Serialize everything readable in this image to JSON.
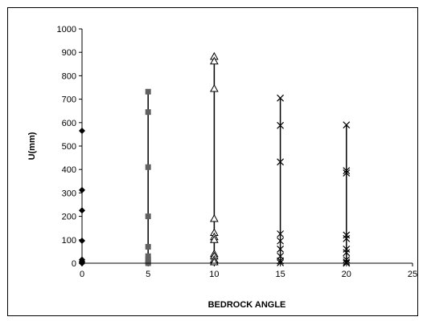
{
  "chart_data": {
    "type": "scatter",
    "title": "",
    "xlabel": "BEDROCK ANGLE",
    "ylabel": "U(mm)",
    "xlim": [
      0,
      25
    ],
    "ylim": [
      0,
      1000
    ],
    "xticks": [
      0,
      5,
      10,
      15,
      20,
      25
    ],
    "yticks": [
      0,
      100,
      200,
      300,
      400,
      500,
      600,
      700,
      800,
      900,
      1000
    ],
    "grid": false,
    "legend": "none",
    "series": [
      {
        "marker": "diamond",
        "color": "#000000",
        "line": false,
        "x": [
          0,
          0,
          0,
          0,
          0,
          0,
          0,
          0
        ],
        "y": [
          565,
          312,
          225,
          96,
          15,
          8,
          3,
          0
        ]
      },
      {
        "marker": "square",
        "color": "#606060",
        "line": true,
        "x": [
          5,
          5,
          5,
          5,
          5,
          5,
          5,
          5,
          5
        ],
        "y": [
          732,
          645,
          410,
          200,
          70,
          30,
          15,
          5,
          0
        ]
      },
      {
        "marker": "triangle",
        "color": "#000000",
        "line": true,
        "x": [
          10,
          10,
          10,
          10,
          10,
          10,
          10,
          10,
          10,
          10,
          10
        ],
        "y": [
          882,
          862,
          745,
          190,
          130,
          112,
          100,
          40,
          30,
          15,
          5
        ]
      },
      {
        "marker": "x",
        "color": "#000000",
        "line": true,
        "x": [
          15,
          15,
          15,
          15,
          15,
          15,
          15,
          15,
          15
        ],
        "y": [
          705,
          588,
          432,
          125,
          95,
          60,
          30,
          10,
          2
        ]
      },
      {
        "marker": "x",
        "color": "#000000",
        "line": true,
        "x": [
          20,
          20,
          20,
          20,
          20,
          20,
          20,
          20,
          20,
          20
        ],
        "y": [
          590,
          395,
          385,
          120,
          105,
          60,
          45,
          15,
          5,
          0
        ]
      }
    ]
  }
}
